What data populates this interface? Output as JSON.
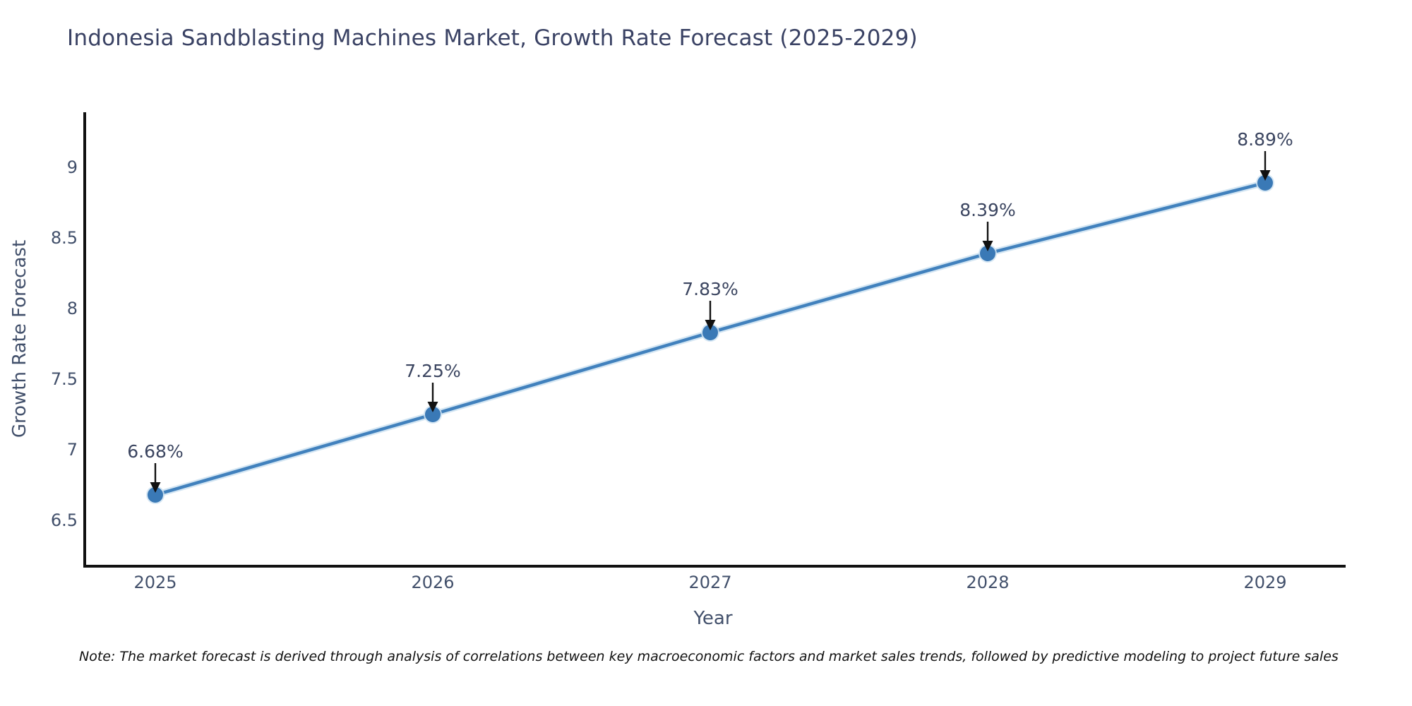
{
  "chart": {
    "title": "Indonesia Sandblasting Machines Market, Growth Rate Forecast (2025-2029)",
    "note": "Note: The market forecast is derived through analysis of correlations between key macroeconomic factors and market sales trends, followed by predictive modeling to project future sales"
  },
  "chart_data": {
    "type": "line",
    "title": "Indonesia Sandblasting Machines Market, Growth Rate Forecast (2025-2029)",
    "xlabel": "Year",
    "ylabel": "Growth Rate Forecast",
    "x": [
      2025,
      2026,
      2027,
      2028,
      2029
    ],
    "values": [
      6.68,
      7.25,
      7.83,
      8.39,
      8.89
    ],
    "point_labels": [
      "6.68%",
      "7.25%",
      "7.83%",
      "8.39%",
      "8.89%"
    ],
    "xtick_labels": [
      "2025",
      "2026",
      "2027",
      "2028",
      "2029"
    ],
    "yticks": [
      6.5,
      7,
      7.5,
      8,
      8.5,
      9
    ],
    "ytick_labels": [
      "6.5",
      "7",
      "7.5",
      "8",
      "8.5",
      "9"
    ],
    "ylim": [
      6.19,
      9.39
    ],
    "grid": false,
    "legend": "none",
    "annotations": "down-arrow from each point label to marker",
    "colors": {
      "line": "#4181bd",
      "marker": "#3a79b6",
      "halo": "#cfe3f2",
      "axis": "#111111",
      "tick_text": "#42506b",
      "title_text": "#3a4264",
      "note_text": "#111111",
      "arrow": "#111111"
    }
  }
}
